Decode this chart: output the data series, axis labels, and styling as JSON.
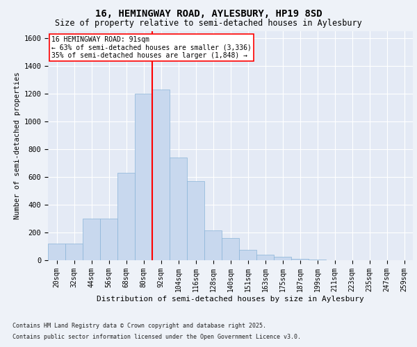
{
  "title1": "16, HEMINGWAY ROAD, AYLESBURY, HP19 8SD",
  "title2": "Size of property relative to semi-detached houses in Aylesbury",
  "xlabel": "Distribution of semi-detached houses by size in Aylesbury",
  "ylabel": "Number of semi-detached properties",
  "bin_labels": [
    "20sqm",
    "32sqm",
    "44sqm",
    "56sqm",
    "68sqm",
    "80sqm",
    "92sqm",
    "104sqm",
    "116sqm",
    "128sqm",
    "140sqm",
    "151sqm",
    "163sqm",
    "175sqm",
    "187sqm",
    "199sqm",
    "211sqm",
    "223sqm",
    "235sqm",
    "247sqm",
    "259sqm"
  ],
  "bar_values": [
    120,
    120,
    300,
    300,
    630,
    1200,
    1230,
    740,
    570,
    215,
    160,
    75,
    40,
    25,
    12,
    7,
    2,
    1,
    0,
    2,
    0
  ],
  "bar_color": "#c8d8ee",
  "bar_edge_color": "#8ab4d8",
  "vline_x_index": 6,
  "vline_color": "red",
  "annotation_text": "16 HEMINGWAY ROAD: 91sqm\n← 63% of semi-detached houses are smaller (3,336)\n35% of semi-detached houses are larger (1,848) →",
  "annotation_box_color": "white",
  "annotation_box_edge": "red",
  "footer1": "Contains HM Land Registry data © Crown copyright and database right 2025.",
  "footer2": "Contains public sector information licensed under the Open Government Licence v3.0.",
  "ylim": [
    0,
    1650
  ],
  "yticks": [
    0,
    200,
    400,
    600,
    800,
    1000,
    1200,
    1400,
    1600
  ],
  "background_color": "#eef2f8",
  "plot_background": "#e4eaf5",
  "grid_color": "white",
  "title1_fontsize": 10,
  "title2_fontsize": 8.5,
  "xlabel_fontsize": 8,
  "ylabel_fontsize": 7.5,
  "tick_fontsize": 7,
  "ytick_fontsize": 7.5,
  "footer_fontsize": 6
}
